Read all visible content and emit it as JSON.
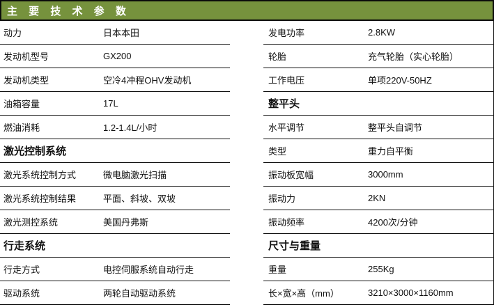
{
  "title_bar": {
    "title": "主 要 技 术 参 数"
  },
  "colors": {
    "title_background": "#76923D",
    "title_text": "#FFFFFF",
    "border": "#111111",
    "body_text": "#111111"
  },
  "left_table": {
    "rows": [
      {
        "type": "data",
        "label": "动力",
        "value": "日本本田"
      },
      {
        "type": "data",
        "label": "发动机型号",
        "value": "GX200"
      },
      {
        "type": "data",
        "label": "发动机类型",
        "value": "空冷4冲程OHV发动机"
      },
      {
        "type": "data",
        "label": "油箱容量",
        "value": "17L"
      },
      {
        "type": "data",
        "label": "燃油消耗",
        "value": "1.2-1.4L/小时"
      },
      {
        "type": "section",
        "label": "激光控制系统"
      },
      {
        "type": "data",
        "label": "激光系统控制方式",
        "value": "微电脑激光扫描"
      },
      {
        "type": "data",
        "label": "激光系统控制结果",
        "value": "平面、斜坡、双坡"
      },
      {
        "type": "data",
        "label": "激光测控系统",
        "value": "美国丹弗斯"
      },
      {
        "type": "section",
        "label": "行走系统"
      },
      {
        "type": "data",
        "label": "行走方式",
        "value": "电控伺服系统自动行走"
      },
      {
        "type": "data",
        "label": "驱动系统",
        "value": "两轮自动驱动系统"
      }
    ]
  },
  "right_table": {
    "rows": [
      {
        "type": "data",
        "label": "发电功率",
        "value": "2.8KW"
      },
      {
        "type": "data",
        "label": "轮胎",
        "value": "充气轮胎（实心轮胎）"
      },
      {
        "type": "data",
        "label": "工作电压",
        "value": "单项220V-50HZ"
      },
      {
        "type": "section",
        "label": "整平头"
      },
      {
        "type": "data",
        "label": "水平调节",
        "value": "整平头自调节"
      },
      {
        "type": "data",
        "label": "类型",
        "value": "重力自平衡"
      },
      {
        "type": "data",
        "label": "振动板宽幅",
        "value": "3000mm"
      },
      {
        "type": "data",
        "label": "振动力",
        "value": "2KN"
      },
      {
        "type": "data",
        "label": "振动频率",
        "value": "4200次/分钟"
      },
      {
        "type": "section",
        "label": "尺寸与重量"
      },
      {
        "type": "data",
        "label": "重量",
        "value": "255Kg"
      },
      {
        "type": "data",
        "label": "长×宽×高（mm）",
        "value": "3210×3000×1160mm"
      }
    ]
  }
}
